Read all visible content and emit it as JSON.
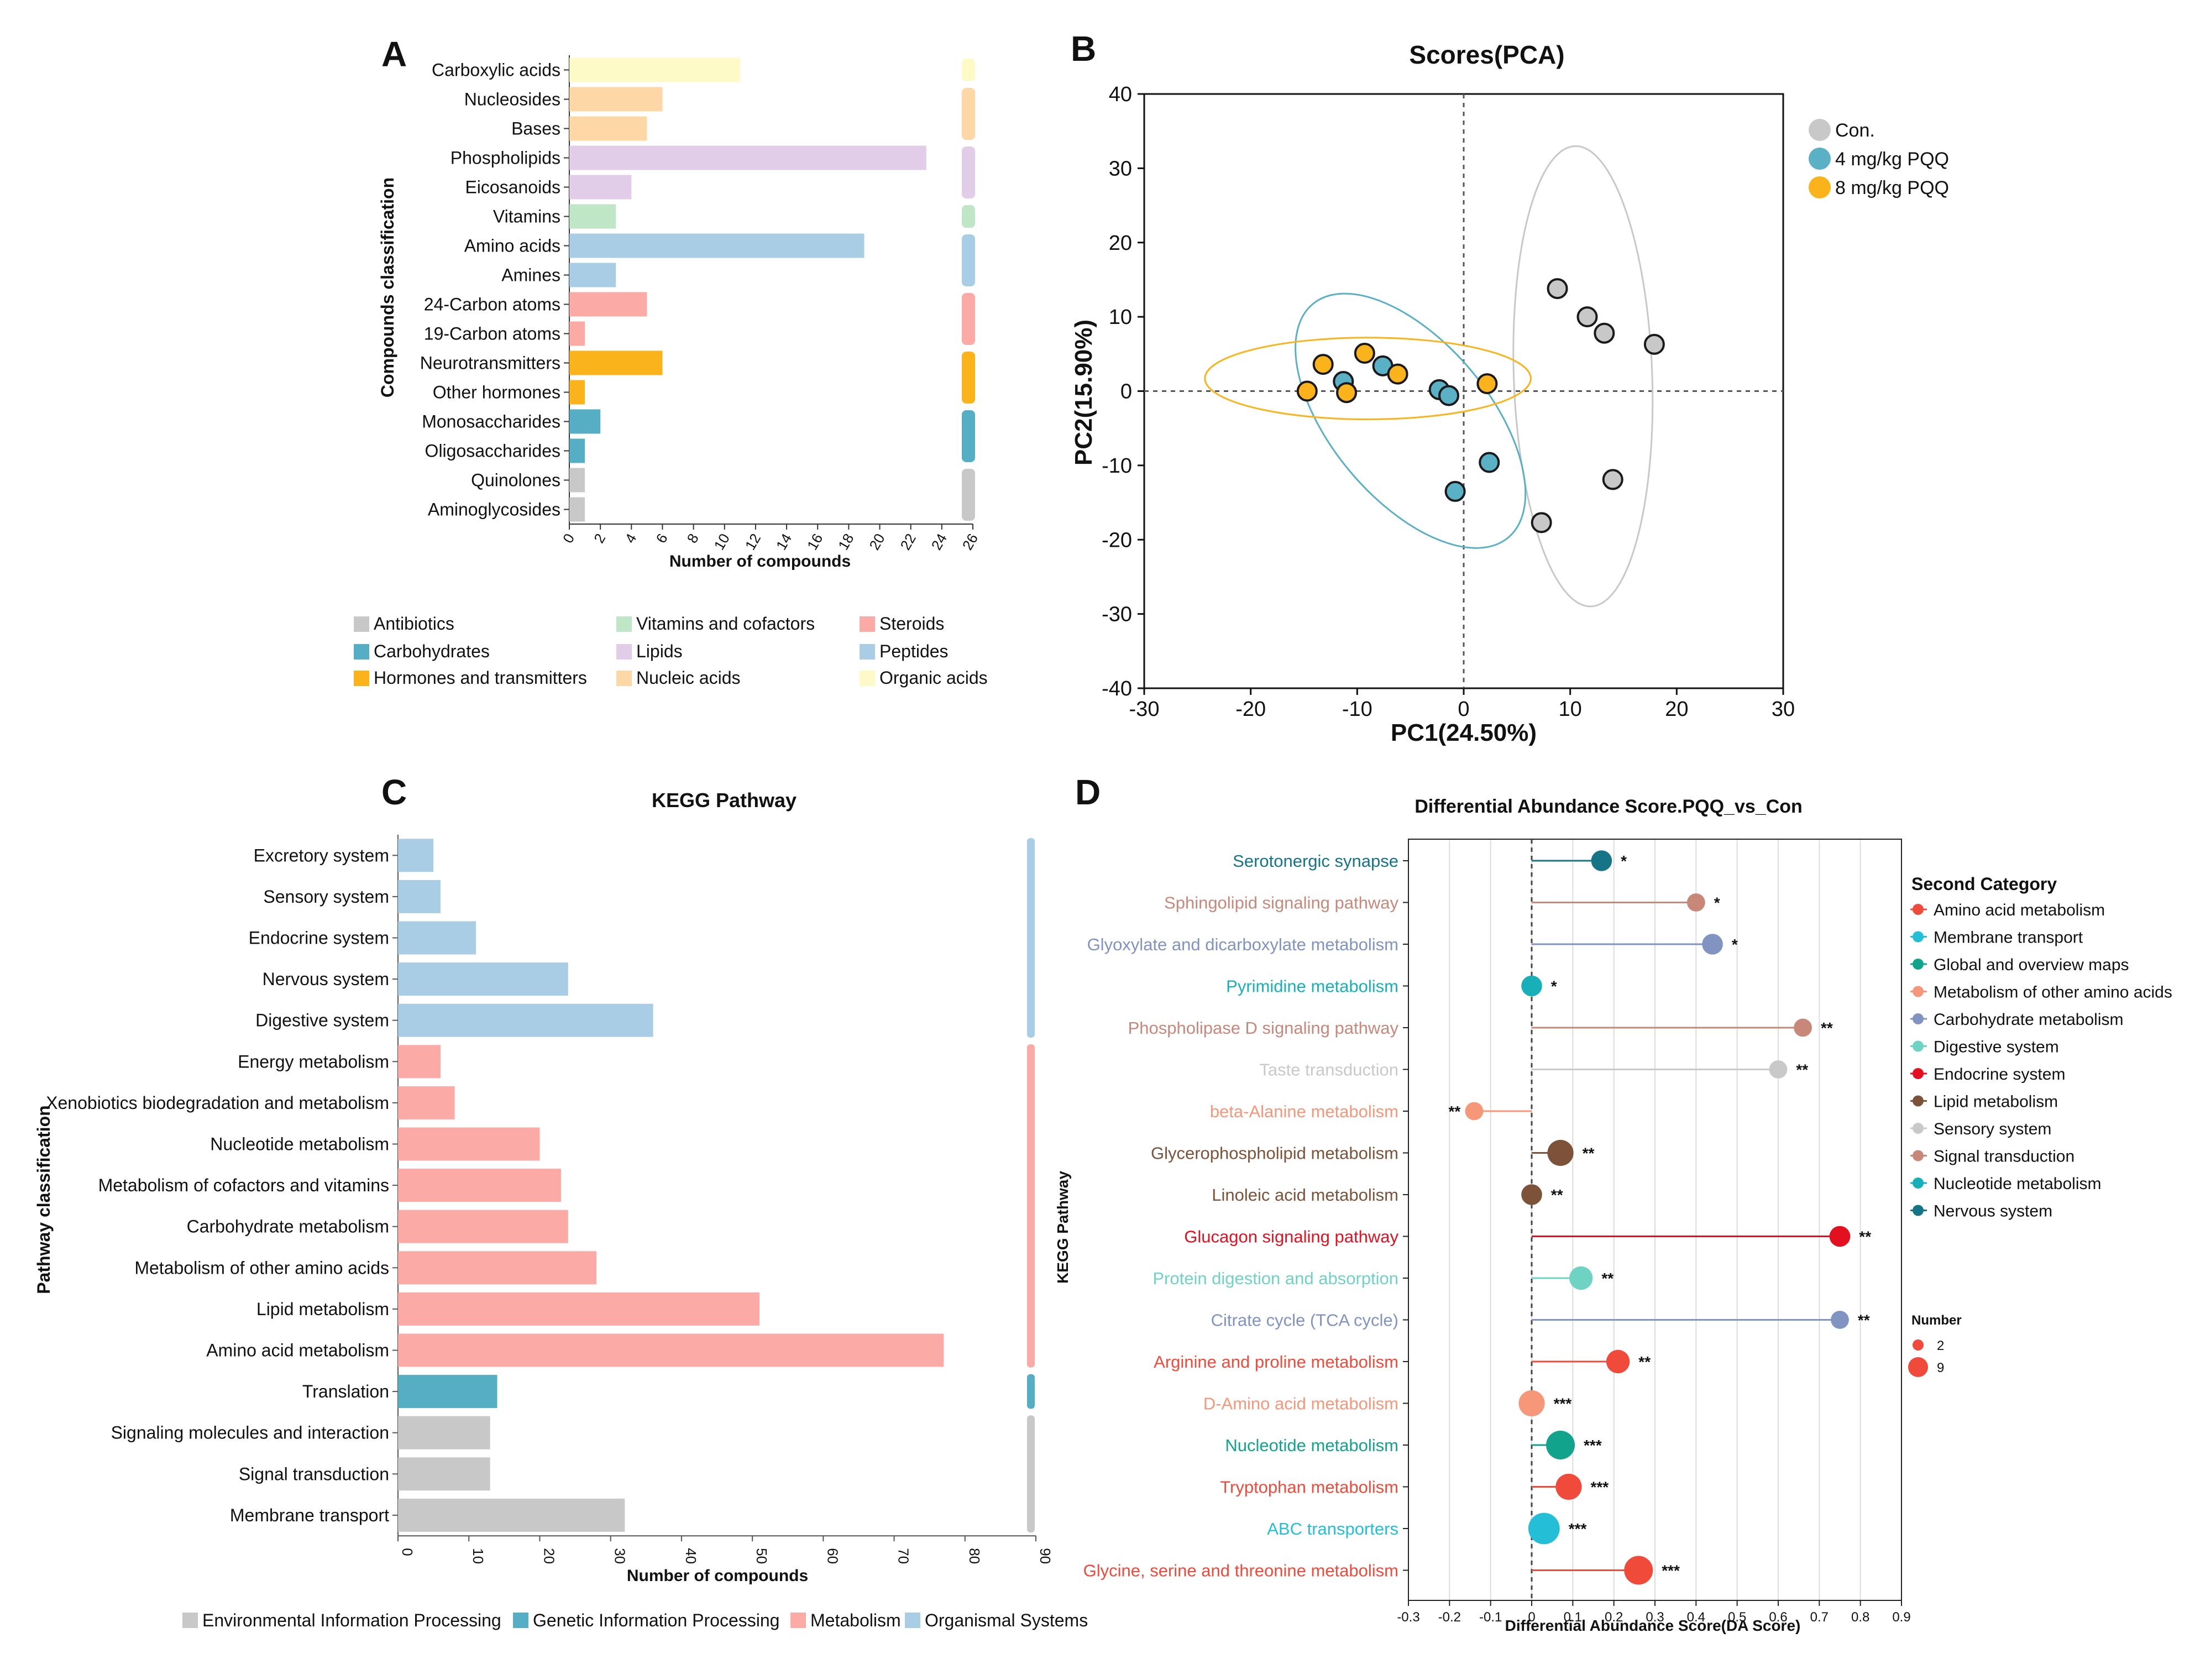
{
  "colors": {
    "antibiotics": "#c8c8c8",
    "carbohydrates": "#56aec4",
    "hormones": "#fab31a",
    "vitamins": "#bfe6c6",
    "lipids": "#e1cde8",
    "nucleic": "#fdd7a6",
    "steroids": "#fcaaa6",
    "peptides": "#aacde6",
    "organic": "#fdfac8",
    "con": "#c8c8c8",
    "pqq4": "#5ab0c4",
    "pqq8": "#fab31a",
    "env": "#c8c8c8",
    "gen": "#56aec4",
    "met": "#fcaaa6",
    "org": "#aacde6"
  },
  "chart_data": [
    {
      "panel": "A",
      "type": "bar",
      "orientation": "horizontal",
      "title": "",
      "xlabel": "Number of compounds",
      "ylabel": "Compounds classification",
      "xlim": [
        0,
        26
      ],
      "xticks": [
        0,
        2,
        4,
        6,
        8,
        10,
        12,
        14,
        16,
        18,
        20,
        22,
        24,
        26
      ],
      "categories": [
        "Carboxylic acids",
        "Nucleosides",
        "Bases",
        "Phospholipids",
        "Eicosanoids",
        "Vitamins",
        "Amino acids",
        "Amines",
        "24-Carbon atoms",
        "19-Carbon atoms",
        "Neurotransmitters",
        "Other hormones",
        "Monosaccharides",
        "Oligosaccharides",
        "Quinolones",
        "Aminoglycosides"
      ],
      "values": [
        11,
        6,
        5,
        23,
        4,
        3,
        19,
        3,
        5,
        1,
        6,
        1,
        2,
        1,
        1,
        1
      ],
      "groups": [
        "organic",
        "nucleic",
        "nucleic",
        "lipids",
        "lipids",
        "vitamins",
        "peptides",
        "peptides",
        "steroids",
        "steroids",
        "hormones",
        "hormones",
        "carbohydrates",
        "carbohydrates",
        "antibiotics",
        "antibiotics"
      ],
      "legend": [
        {
          "key": "antibiotics",
          "label": "Antibiotics"
        },
        {
          "key": "carbohydrates",
          "label": "Carbohydrates"
        },
        {
          "key": "hormones",
          "label": "Hormones and transmitters"
        },
        {
          "key": "vitamins",
          "label": "Vitamins and cofactors"
        },
        {
          "key": "lipids",
          "label": "Lipids"
        },
        {
          "key": "nucleic",
          "label": "Nucleic acids"
        },
        {
          "key": "steroids",
          "label": "Steroids"
        },
        {
          "key": "peptides",
          "label": "Peptides"
        },
        {
          "key": "organic",
          "label": "Organic acids"
        }
      ]
    },
    {
      "panel": "B",
      "type": "scatter",
      "title": "Scores(PCA)",
      "xlabel": "PC1(24.50%)",
      "ylabel": "PC2(15.90%)",
      "xlim": [
        -30,
        30
      ],
      "ylim": [
        -40,
        40
      ],
      "xticks": [
        -30,
        -20,
        -10,
        0,
        10,
        20,
        30
      ],
      "yticks": [
        -40,
        -30,
        -20,
        -10,
        0,
        10,
        20,
        30,
        40
      ],
      "series": [
        {
          "key": "con",
          "name": "Con.",
          "points": [
            [
              8.8,
              13.8
            ],
            [
              11.6,
              10
            ],
            [
              13.2,
              7.8
            ],
            [
              17.9,
              6.3
            ],
            [
              14,
              -11.9
            ],
            [
              7.3,
              -17.7
            ]
          ],
          "ellipse": {
            "cx": 11.2,
            "cy": 2,
            "rx": 6.5,
            "ry": 31,
            "angle_deg": -2
          }
        },
        {
          "key": "pqq4",
          "name": "4 mg/kg PQQ",
          "points": [
            [
              -11.3,
              1.3
            ],
            [
              -7.6,
              3.4
            ],
            [
              -2.3,
              0.2
            ],
            [
              -1.4,
              -0.6
            ],
            [
              2.4,
              -9.6
            ],
            [
              -0.8,
              -13.5
            ]
          ],
          "ellipse": {
            "cx": -5,
            "cy": -4,
            "rx": 7.4,
            "ry": 20.5,
            "angle_deg": -40
          }
        },
        {
          "key": "pqq8",
          "name": "8 mg/kg PQQ",
          "points": [
            [
              -13.2,
              3.6
            ],
            [
              -9.3,
              5.1
            ],
            [
              -6.2,
              2.3
            ],
            [
              -14.7,
              0
            ],
            [
              -11,
              -0.2
            ],
            [
              2.2,
              1
            ]
          ],
          "ellipse": {
            "cx": -9,
            "cy": 1.7,
            "rx": 15.3,
            "ry": 5.5,
            "angle_deg": 0
          }
        }
      ]
    },
    {
      "panel": "C",
      "type": "bar",
      "orientation": "horizontal",
      "title": "KEGG Pathway",
      "xlabel": "Number of compounds",
      "ylabel": "Pathway classification",
      "xlim": [
        0,
        90
      ],
      "xticks": [
        0,
        10,
        20,
        30,
        40,
        50,
        60,
        70,
        80,
        90
      ],
      "categories": [
        "Excretory system",
        "Sensory system",
        "Endocrine system",
        "Nervous system",
        "Digestive system",
        "Energy metabolism",
        "Xenobiotics biodegradation and metabolism",
        "Nucleotide metabolism",
        "Metabolism of cofactors and vitamins",
        "Carbohydrate metabolism",
        "Metabolism of other amino acids",
        "Lipid metabolism",
        "Amino acid metabolism",
        "Translation",
        "Signaling molecules and interaction",
        "Signal transduction",
        "Membrane transport"
      ],
      "values": [
        5,
        6,
        11,
        24,
        36,
        6,
        8,
        20,
        23,
        24,
        28,
        51,
        77,
        14,
        13,
        13,
        32
      ],
      "groups": [
        "org",
        "org",
        "org",
        "org",
        "org",
        "met",
        "met",
        "met",
        "met",
        "met",
        "met",
        "met",
        "met",
        "gen",
        "env",
        "env",
        "env"
      ],
      "legend": [
        {
          "key": "env",
          "label": "Environmental Information Processing"
        },
        {
          "key": "gen",
          "label": "Genetic Information Processing"
        },
        {
          "key": "met",
          "label": "Metabolism"
        },
        {
          "key": "org",
          "label": "Organismal Systems"
        }
      ]
    },
    {
      "panel": "D",
      "type": "lollipop",
      "title": "Differential Abundance Score.PQQ_vs_Con",
      "xlabel": "Differential Abundance Score(DA Score)",
      "ylabel": "KEGG Pathway",
      "xlim": [
        -0.3,
        0.9
      ],
      "xticks": [
        "-0.3",
        "-0.2",
        "-0.1",
        "0",
        "0.1",
        "0.2",
        "0.3",
        "0.4",
        "0.5",
        "0.6",
        "0.7",
        "0.8",
        "0.9"
      ],
      "rows": [
        {
          "name": "Serotonergic synapse",
          "value": 0.17,
          "count": 4,
          "sig": "*",
          "cat": "Nervous system"
        },
        {
          "name": "Sphingolipid signaling pathway",
          "value": 0.4,
          "count": 3,
          "sig": "*",
          "cat": "Signal transduction"
        },
        {
          "name": "Glyoxylate and dicarboxylate metabolism",
          "value": 0.44,
          "count": 4,
          "sig": "*",
          "cat": "Carbohydrate metabolism"
        },
        {
          "name": "Pyrimidine metabolism",
          "value": 0,
          "count": 4,
          "sig": "*",
          "cat": "Nucleotide metabolism"
        },
        {
          "name": "Phospholipase D signaling pathway",
          "value": 0.66,
          "count": 3,
          "sig": "**",
          "cat": "Signal transduction"
        },
        {
          "name": "Taste transduction",
          "value": 0.6,
          "count": 3,
          "sig": "**",
          "cat": "Sensory system"
        },
        {
          "name": "beta-Alanine metabolism",
          "value": -0.14,
          "count": 3,
          "sig": "**",
          "cat": "Metabolism of other amino acids"
        },
        {
          "name": "Glycerophospholipid metabolism",
          "value": 0.07,
          "count": 6,
          "sig": "**",
          "cat": "Lipid metabolism"
        },
        {
          "name": "Linoleic acid metabolism",
          "value": 0,
          "count": 4,
          "sig": "**",
          "cat": "Lipid metabolism"
        },
        {
          "name": "Glucagon signaling pathway",
          "value": 0.75,
          "count": 4,
          "sig": "**",
          "cat": "Endocrine system"
        },
        {
          "name": "Protein digestion and absorption",
          "value": 0.12,
          "count": 5,
          "sig": "**",
          "cat": "Digestive system"
        },
        {
          "name": "Citrate cycle (TCA cycle)",
          "value": 0.75,
          "count": 3,
          "sig": "**",
          "cat": "Carbohydrate metabolism"
        },
        {
          "name": "Arginine and proline metabolism",
          "value": 0.21,
          "count": 5,
          "sig": "**",
          "cat": "Amino acid metabolism"
        },
        {
          "name": "D-Amino acid metabolism",
          "value": 0,
          "count": 6,
          "sig": "***",
          "cat": "Metabolism of other amino acids"
        },
        {
          "name": "Nucleotide metabolism",
          "value": 0.07,
          "count": 7,
          "sig": "***",
          "cat": "Global and overview maps"
        },
        {
          "name": "Tryptophan metabolism",
          "value": 0.09,
          "count": 6,
          "sig": "***",
          "cat": "Amino acid metabolism"
        },
        {
          "name": "ABC transporters",
          "value": 0.03,
          "count": 8,
          "sig": "***",
          "cat": "Membrane transport"
        },
        {
          "name": "Glycine, serine and threonine metabolism",
          "value": 0.26,
          "count": 7,
          "sig": "***",
          "cat": "Amino acid metabolism"
        }
      ],
      "categories": [
        {
          "name": "Amino acid metabolism",
          "color": "#f04a3a"
        },
        {
          "name": "Membrane transport",
          "color": "#24bfd6"
        },
        {
          "name": "Global and overview maps",
          "color": "#12a38c"
        },
        {
          "name": "Metabolism of other amino acids",
          "color": "#f7977a"
        },
        {
          "name": "Carbohydrate metabolism",
          "color": "#8093c1"
        },
        {
          "name": "Digestive system",
          "color": "#6fd3c4"
        },
        {
          "name": "Endocrine system",
          "color": "#e3101f"
        },
        {
          "name": "Lipid metabolism",
          "color": "#7c5339"
        },
        {
          "name": "Sensory system",
          "color": "#c9c9c9"
        },
        {
          "name": "Signal transduction",
          "color": "#c7887a"
        },
        {
          "name": "Nucleotide metabolism",
          "color": "#17b0b8"
        },
        {
          "name": "Nervous system",
          "color": "#157485"
        }
      ],
      "legend_title": "Second Category",
      "size_legend_title": "Number",
      "size_legend": [
        2,
        9
      ]
    }
  ],
  "panels": {
    "A": "A",
    "B": "B",
    "C": "C",
    "D": "D"
  },
  "side_label_d": "KEGG Pathway"
}
